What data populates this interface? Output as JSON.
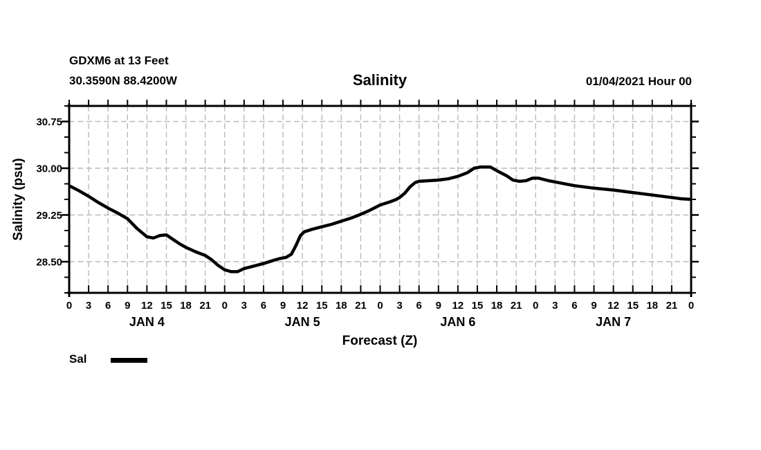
{
  "header": {
    "station_line": "GDXM6 at 13 Feet",
    "coords_line": "30.3590N 88.4200W",
    "title": "Salinity",
    "datetime": "01/04/2021 Hour 00"
  },
  "legend": {
    "label": "Sal",
    "swatch_color": "#000000",
    "position": "below-left"
  },
  "chart_data": {
    "type": "line",
    "title": "Salinity",
    "xlabel": "Forecast (Z)",
    "ylabel": "Salinity (psu)",
    "xlim": [
      0,
      96
    ],
    "ylim": [
      28.0,
      31.0
    ],
    "grid": {
      "on": true,
      "dashed": true,
      "color": "#b9b9b9"
    },
    "axis_color": "#000000",
    "x_ticks": {
      "hours": [
        0,
        3,
        6,
        9,
        12,
        15,
        18,
        21,
        24,
        27,
        30,
        33,
        36,
        39,
        42,
        45,
        48,
        51,
        54,
        57,
        60,
        63,
        66,
        69,
        72,
        75,
        78,
        81,
        84,
        87,
        90,
        93,
        96
      ],
      "labels": [
        "0",
        "3",
        "6",
        "9",
        "12",
        "15",
        "18",
        "21",
        "0",
        "3",
        "6",
        "9",
        "12",
        "15",
        "18",
        "21",
        "0",
        "3",
        "6",
        "9",
        "12",
        "15",
        "18",
        "21",
        "0",
        "3",
        "6",
        "9",
        "12",
        "15",
        "18",
        "21",
        "0"
      ]
    },
    "day_labels": [
      {
        "label": "JAN 4",
        "hour": 12
      },
      {
        "label": "JAN 5",
        "hour": 36
      },
      {
        "label": "JAN 6",
        "hour": 60
      },
      {
        "label": "JAN 7",
        "hour": 84
      }
    ],
    "y_major_ticks": {
      "values": [
        28.5,
        29.25,
        30.0,
        30.75
      ],
      "labels": [
        "28.50",
        "29.25",
        "30.00",
        "30.75"
      ]
    },
    "y_minor_step": 0.25,
    "series": [
      {
        "name": "Sal",
        "color": "#000000",
        "points": [
          [
            0,
            29.72
          ],
          [
            1.5,
            29.64
          ],
          [
            3,
            29.55
          ],
          [
            4.5,
            29.45
          ],
          [
            6,
            29.36
          ],
          [
            7.5,
            29.28
          ],
          [
            9,
            29.19
          ],
          [
            10.5,
            29.03
          ],
          [
            12,
            28.9
          ],
          [
            13,
            28.88
          ],
          [
            14,
            28.92
          ],
          [
            15,
            28.93
          ],
          [
            16,
            28.86
          ],
          [
            17,
            28.79
          ],
          [
            18,
            28.73
          ],
          [
            19.5,
            28.66
          ],
          [
            21,
            28.6
          ],
          [
            22,
            28.53
          ],
          [
            23,
            28.44
          ],
          [
            24,
            28.37
          ],
          [
            25,
            28.34
          ],
          [
            26,
            28.34
          ],
          [
            27,
            28.39
          ],
          [
            28.5,
            28.43
          ],
          [
            30,
            28.47
          ],
          [
            31.5,
            28.52
          ],
          [
            32.5,
            28.55
          ],
          [
            33.5,
            28.57
          ],
          [
            34.3,
            28.62
          ],
          [
            35,
            28.76
          ],
          [
            35.7,
            28.92
          ],
          [
            36.3,
            28.98
          ],
          [
            37.5,
            29.02
          ],
          [
            39,
            29.06
          ],
          [
            40.5,
            29.1
          ],
          [
            42,
            29.15
          ],
          [
            43.5,
            29.2
          ],
          [
            45,
            29.26
          ],
          [
            46.5,
            29.33
          ],
          [
            48,
            29.41
          ],
          [
            49.5,
            29.46
          ],
          [
            50.5,
            29.5
          ],
          [
            51,
            29.53
          ],
          [
            51.8,
            29.6
          ],
          [
            52.6,
            29.7
          ],
          [
            53.4,
            29.77
          ],
          [
            54,
            29.79
          ],
          [
            55.5,
            29.8
          ],
          [
            57,
            29.81
          ],
          [
            58.5,
            29.83
          ],
          [
            60,
            29.87
          ],
          [
            61.5,
            29.93
          ],
          [
            62.5,
            30.0
          ],
          [
            63.5,
            30.02
          ],
          [
            65,
            30.02
          ],
          [
            66,
            29.96
          ],
          [
            67.5,
            29.88
          ],
          [
            68.5,
            29.81
          ],
          [
            69.5,
            29.79
          ],
          [
            70.5,
            29.8
          ],
          [
            71.5,
            29.84
          ],
          [
            72.5,
            29.84
          ],
          [
            74,
            29.8
          ],
          [
            75,
            29.78
          ],
          [
            78,
            29.72
          ],
          [
            81,
            29.68
          ],
          [
            84,
            29.65
          ],
          [
            87,
            29.61
          ],
          [
            90,
            29.57
          ],
          [
            93,
            29.53
          ],
          [
            94.5,
            29.51
          ],
          [
            96,
            29.5
          ]
        ]
      }
    ]
  }
}
